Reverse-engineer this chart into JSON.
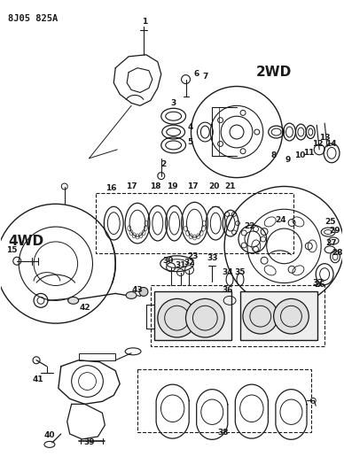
{
  "title_code": "8J05 825A",
  "label_2WD": "2WD",
  "label_4WD": "4WD",
  "bg_color": "#ffffff",
  "line_color": "#1a1a1a",
  "text_color": "#1a1a1a",
  "fig_width": 3.88,
  "fig_height": 5.33,
  "dpi": 100
}
